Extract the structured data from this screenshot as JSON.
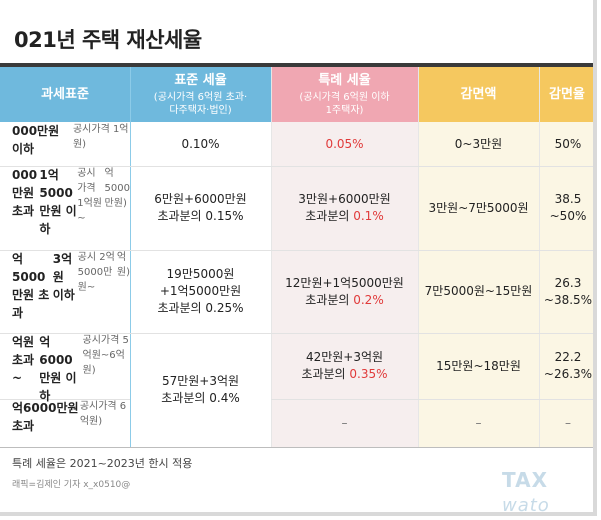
{
  "title": "021년 주택 재산세율",
  "headers": {
    "col1": "과세표준",
    "col2_main": "표준 세율",
    "col2_sub1": "(공시가격 6억원 초과·",
    "col2_sub2": "다주택자·법인)",
    "col3_main": "특례 세율",
    "col3_sub1": "(공시가격 6억원 이하",
    "col3_sub2": "1주택자)",
    "col4": "감면액",
    "col5": "감면율"
  },
  "rows": [
    {
      "base_lines": [
        "000만원 이하"
      ],
      "base_small": [
        "공시가격 1억원)"
      ],
      "standard": [
        "0.10%"
      ],
      "special": "0.05%",
      "special_prefix": "",
      "reduction": "0~3만원",
      "rate": [
        "50%"
      ]
    },
    {
      "base_lines": [
        "000만원 초과",
        "1억5000만원 이하"
      ],
      "base_small": [
        "공시가격 1억원~",
        "억5000만원)"
      ],
      "standard": [
        "6만원+6000만원",
        "초과분의 0.15%"
      ],
      "special_line1": "3만원+6000만원",
      "special_prefix": "초과분의 ",
      "special": "0.1%",
      "reduction": "3만원~7만5000원",
      "rate": [
        "38.5",
        "~50%"
      ]
    },
    {
      "base_lines": [
        "억5000만원 초과",
        "3억원 이하"
      ],
      "base_small": [
        "공시 2억5000만원~",
        "억원)"
      ],
      "standard": [
        "19만5000원",
        "+1억5000만원",
        "초과분의 0.25%"
      ],
      "special_line1": "12만원+1억5000만원",
      "special_prefix": "초과분의 ",
      "special": "0.2%",
      "reduction": "7만5000원~15만원",
      "rate": [
        "26.3",
        "~38.5%"
      ]
    },
    {
      "base_lines": [
        "억원 초과~",
        "억6000만원 이하"
      ],
      "base_small": [
        "공시가격 5억원~6억원)"
      ],
      "special_line1": "42만원+3억원",
      "special_prefix": "초과분의 ",
      "special": "0.35%",
      "reduction": "15만원~18만원",
      "rate": [
        "22.2",
        "~26.3%"
      ]
    },
    {
      "base_lines": [
        "억6000만원 초과"
      ],
      "base_small": [
        "공시가격 6억원)"
      ],
      "special": "–",
      "reduction": "–",
      "rate": [
        "–"
      ]
    }
  ],
  "standard_merged": [
    "57만원+3억원",
    "초과분의 0.4%"
  ],
  "footnote": "특례 세율은 2021~2023년 한시 적용",
  "credit": "래픽=김제인 기자 x_x0510@",
  "logo_main": "TAX",
  "logo_sub": "wato",
  "colors": {
    "header_blue": "#6fb9dd",
    "header_pink": "#f0a7b2",
    "header_yellow": "#f5c85f",
    "pink_col": "#f6eeee",
    "yellow_col": "#fbf6e4",
    "red_text": "#e03a3a"
  }
}
